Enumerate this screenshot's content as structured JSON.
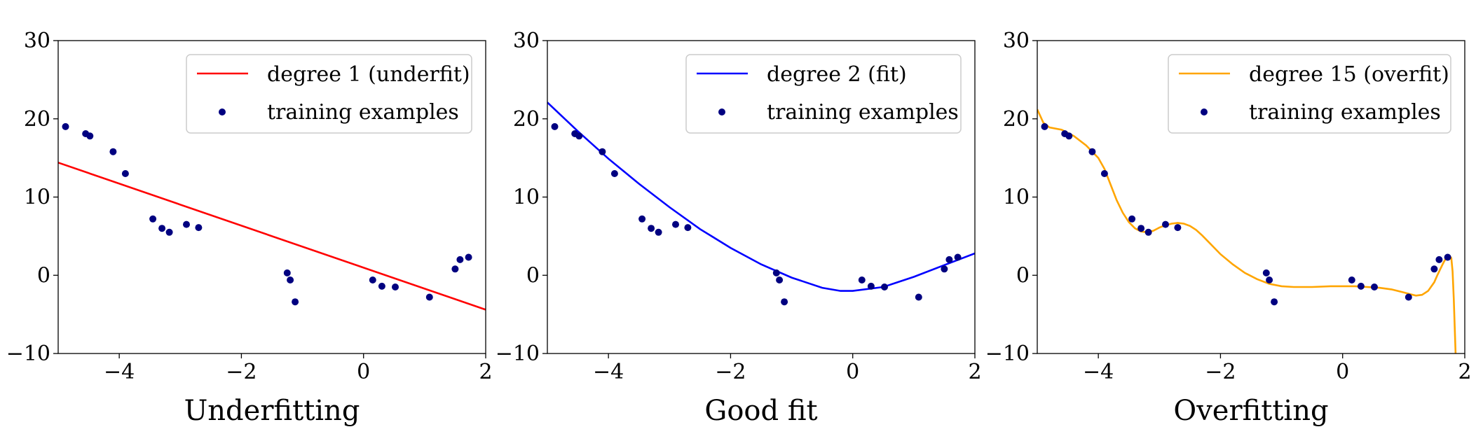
{
  "chart_data": [
    {
      "type": "scatter",
      "xlabel": "Underfitting",
      "ylabel": "",
      "xlim": [
        -5,
        2
      ],
      "ylim": [
        -10,
        30
      ],
      "xticks": [
        -4,
        -2,
        0,
        2
      ],
      "yticks": [
        -10,
        0,
        10,
        20,
        30
      ],
      "xtick_labels": [
        "−4",
        "−2",
        "0",
        "2"
      ],
      "ytick_labels": [
        "−10",
        "0",
        "10",
        "20",
        "30"
      ],
      "legend_position": "upper-right",
      "grid": false,
      "fit": {
        "name": "degree 1 (underfit)",
        "color": "#ff0000",
        "x": [
          -5,
          2
        ],
        "y": [
          14.4,
          -4.4
        ]
      },
      "scatter": {
        "name": "training examples",
        "color": "#000080"
      }
    },
    {
      "type": "scatter",
      "xlabel": "Good fit",
      "ylabel": "",
      "xlim": [
        -5,
        2
      ],
      "ylim": [
        -10,
        30
      ],
      "xticks": [
        -4,
        -2,
        0,
        2
      ],
      "yticks": [
        -10,
        0,
        10,
        20,
        30
      ],
      "xtick_labels": [
        "−4",
        "−2",
        "0",
        "2"
      ],
      "ytick_labels": [
        "−10",
        "0",
        "10",
        "20",
        "30"
      ],
      "legend_position": "upper-right",
      "grid": false,
      "fit": {
        "name": "degree 2 (fit)",
        "color": "#0000ff",
        "x": [
          -5,
          -4.5,
          -4,
          -3.5,
          -3,
          -2.5,
          -2,
          -1.5,
          -1,
          -0.5,
          -0.2,
          0,
          0.5,
          1,
          1.5,
          2
        ],
        "y": [
          22.1,
          18.4,
          14.9,
          11.7,
          8.7,
          5.9,
          3.5,
          1.4,
          -0.3,
          -1.6,
          -2.0,
          -2.0,
          -1.5,
          -0.2,
          1.3,
          2.8
        ]
      },
      "scatter": {
        "name": "training examples",
        "color": "#000080"
      }
    },
    {
      "type": "scatter",
      "xlabel": "Overfitting",
      "ylabel": "",
      "xlim": [
        -5,
        2
      ],
      "ylim": [
        -10,
        30
      ],
      "xticks": [
        -4,
        -2,
        0,
        2
      ],
      "yticks": [
        -10,
        0,
        10,
        20,
        30
      ],
      "xtick_labels": [
        "−4",
        "−2",
        "0",
        "2"
      ],
      "ytick_labels": [
        "−10",
        "0",
        "10",
        "20",
        "30"
      ],
      "legend_position": "upper-right",
      "grid": false,
      "fit": {
        "name": "degree 15 (overfit)",
        "color": "#ffa500",
        "x": [
          -5,
          -4.9,
          -4.8,
          -4.6,
          -4.4,
          -4.2,
          -4.0,
          -3.9,
          -3.8,
          -3.7,
          -3.6,
          -3.5,
          -3.4,
          -3.3,
          -3.2,
          -3.1,
          -3.0,
          -2.9,
          -2.8,
          -2.7,
          -2.6,
          -2.5,
          -2.4,
          -2.3,
          -2.2,
          -2.1,
          -2.0,
          -1.8,
          -1.6,
          -1.4,
          -1.2,
          -1.0,
          -0.8,
          -0.5,
          -0.2,
          0.0,
          0.2,
          0.4,
          0.6,
          0.8,
          1.0,
          1.1,
          1.2,
          1.3,
          1.4,
          1.5,
          1.55,
          1.6,
          1.65,
          1.7,
          1.75,
          1.78,
          1.8,
          1.82,
          1.85
        ],
        "y": [
          21.2,
          19.5,
          18.9,
          18.6,
          17.8,
          16.6,
          15.0,
          13.6,
          11.6,
          9.6,
          8.0,
          6.8,
          6.0,
          5.6,
          5.5,
          5.7,
          6.1,
          6.4,
          6.6,
          6.7,
          6.6,
          6.3,
          5.8,
          5.1,
          4.3,
          3.5,
          2.7,
          1.4,
          0.3,
          -0.5,
          -1.1,
          -1.4,
          -1.5,
          -1.5,
          -1.4,
          -1.4,
          -1.4,
          -1.5,
          -1.6,
          -1.8,
          -2.2,
          -2.4,
          -2.6,
          -2.5,
          -2.0,
          -0.9,
          0.0,
          0.8,
          1.6,
          2.3,
          2.5,
          2.2,
          0.5,
          -3.0,
          -10.0
        ]
      },
      "scatter": {
        "name": "training examples",
        "color": "#000080"
      }
    }
  ],
  "training_points": {
    "x": [
      -4.88,
      -4.55,
      -4.48,
      -4.1,
      -3.9,
      -3.45,
      -3.3,
      -3.18,
      -2.9,
      -2.7,
      -1.25,
      -1.2,
      -1.12,
      0.15,
      0.3,
      0.52,
      1.08,
      1.5,
      1.58,
      1.72
    ],
    "y": [
      19.0,
      18.1,
      17.8,
      15.8,
      13.0,
      7.2,
      6.0,
      5.5,
      6.5,
      6.1,
      0.3,
      -0.6,
      -3.4,
      -0.6,
      -1.4,
      -1.5,
      -2.8,
      0.8,
      2.0,
      2.3
    ]
  }
}
